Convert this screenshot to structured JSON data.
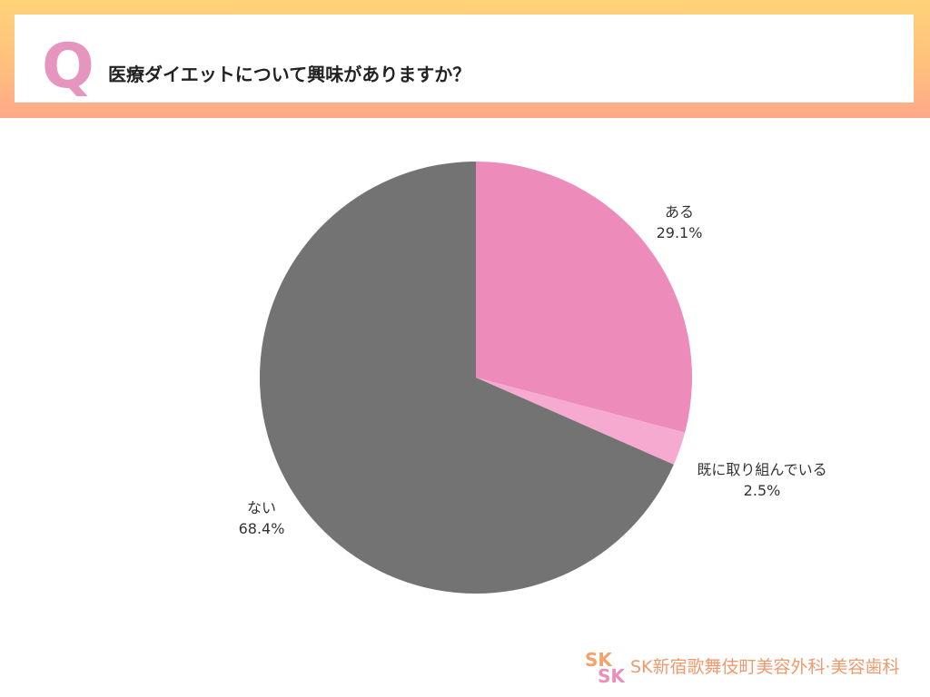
{
  "question": {
    "mark": "Q",
    "text": "医療ダイエットについて興味がありますか？"
  },
  "chart_data": {
    "type": "pie",
    "title": "",
    "start_angle_deg": 0,
    "direction": "clockwise",
    "slices": [
      {
        "label": "ある",
        "value": 29.1,
        "value_label": "29.1%",
        "color": "#ed8bbb"
      },
      {
        "label": "既に取り組んでいる",
        "value": 2.5,
        "value_label": "2.5%",
        "color": "#f6aacf"
      },
      {
        "label": "ない",
        "value": 68.4,
        "value_label": "68.4%",
        "color": "#737373"
      }
    ]
  },
  "brand": {
    "logo_letters": "SK",
    "logo_color_primary": "#f2a26a",
    "logo_color_secondary": "#e98fb8",
    "name": "SK新宿歌舞伎町美容外科·美容歯科"
  }
}
